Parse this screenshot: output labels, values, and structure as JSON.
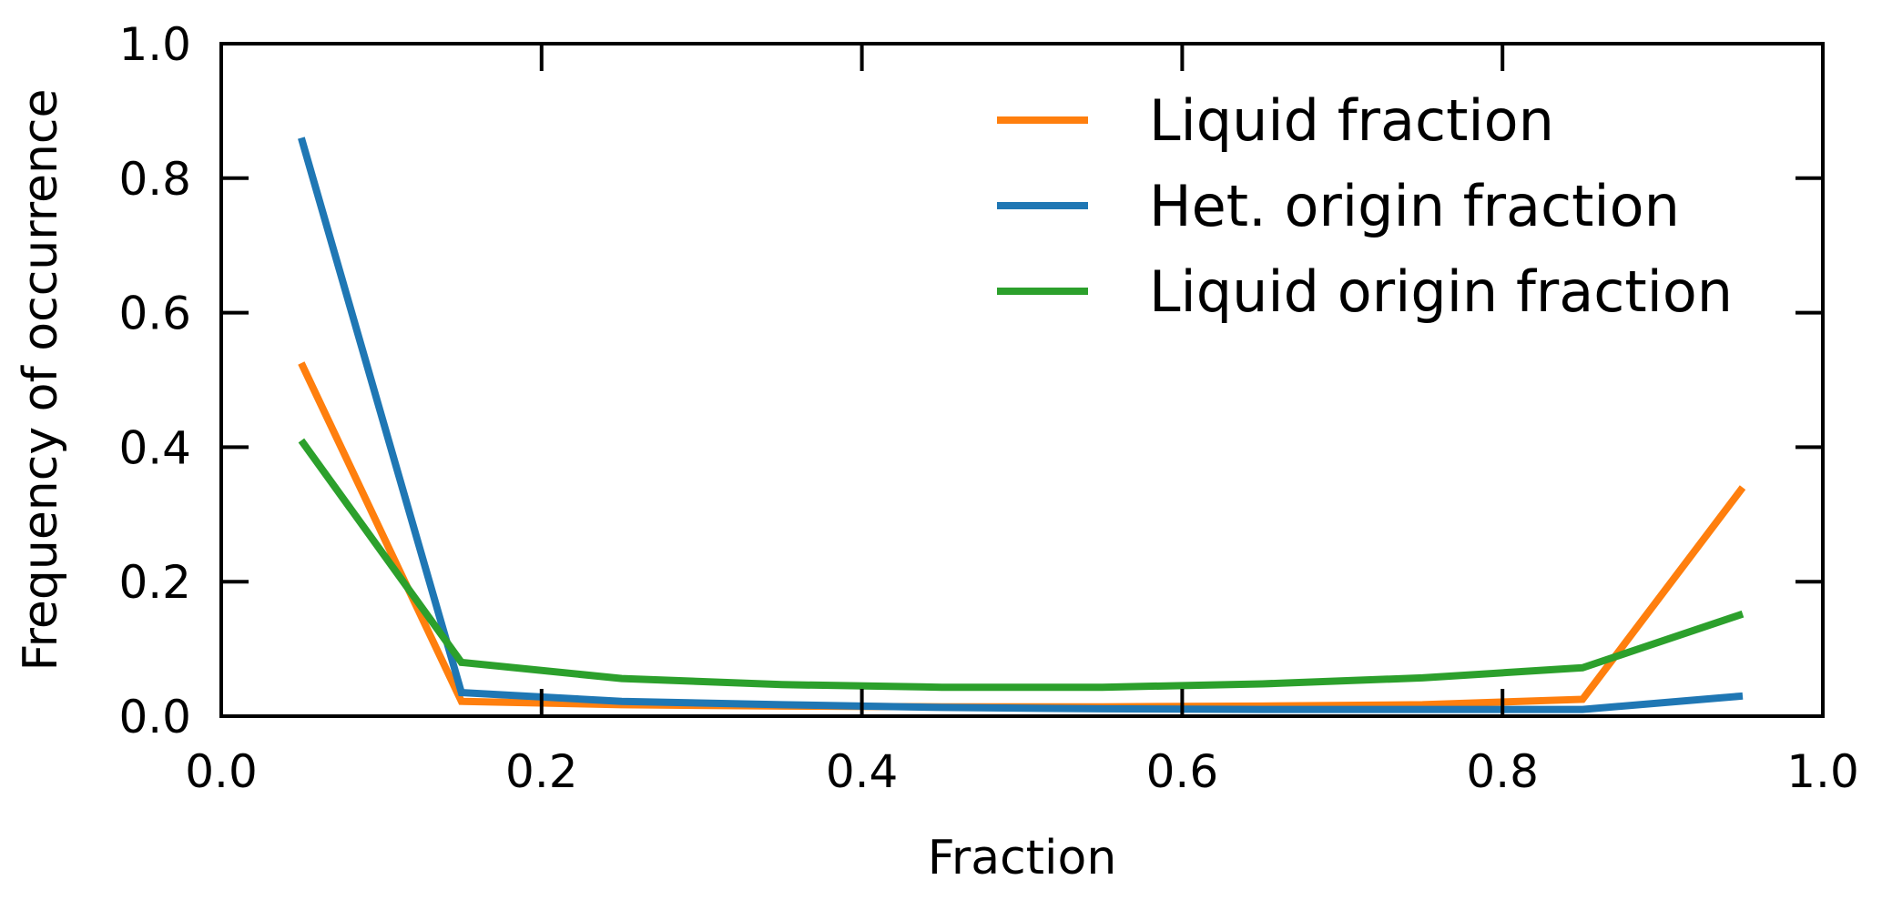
{
  "chart_data": {
    "type": "line",
    "title": "",
    "xlabel": "Fraction",
    "ylabel": "Frequency of occurrence",
    "xlim": [
      0.0,
      1.0
    ],
    "ylim": [
      0.0,
      1.0
    ],
    "xticks": [
      "0.0",
      "0.2",
      "0.4",
      "0.6",
      "0.8",
      "1.0"
    ],
    "yticks": [
      "0.0",
      "0.2",
      "0.4",
      "0.6",
      "0.8",
      "1.0"
    ],
    "grid": false,
    "legend_position": "top-right",
    "x": [
      0.05,
      0.15,
      0.25,
      0.35,
      0.45,
      0.55,
      0.65,
      0.75,
      0.85,
      0.95
    ],
    "series": [
      {
        "name": "Liquid fraction",
        "color": "#ff7f0e",
        "values": [
          0.525,
          0.022,
          0.017,
          0.015,
          0.014,
          0.014,
          0.015,
          0.017,
          0.025,
          0.34
        ]
      },
      {
        "name": "Het. origin fraction",
        "color": "#1f77b4",
        "values": [
          0.86,
          0.035,
          0.022,
          0.017,
          0.013,
          0.011,
          0.01,
          0.01,
          0.01,
          0.03
        ]
      },
      {
        "name": "Liquid origin fraction",
        "color": "#2ca02c",
        "values": [
          0.41,
          0.08,
          0.056,
          0.047,
          0.043,
          0.043,
          0.048,
          0.057,
          0.072,
          0.152
        ]
      }
    ]
  }
}
